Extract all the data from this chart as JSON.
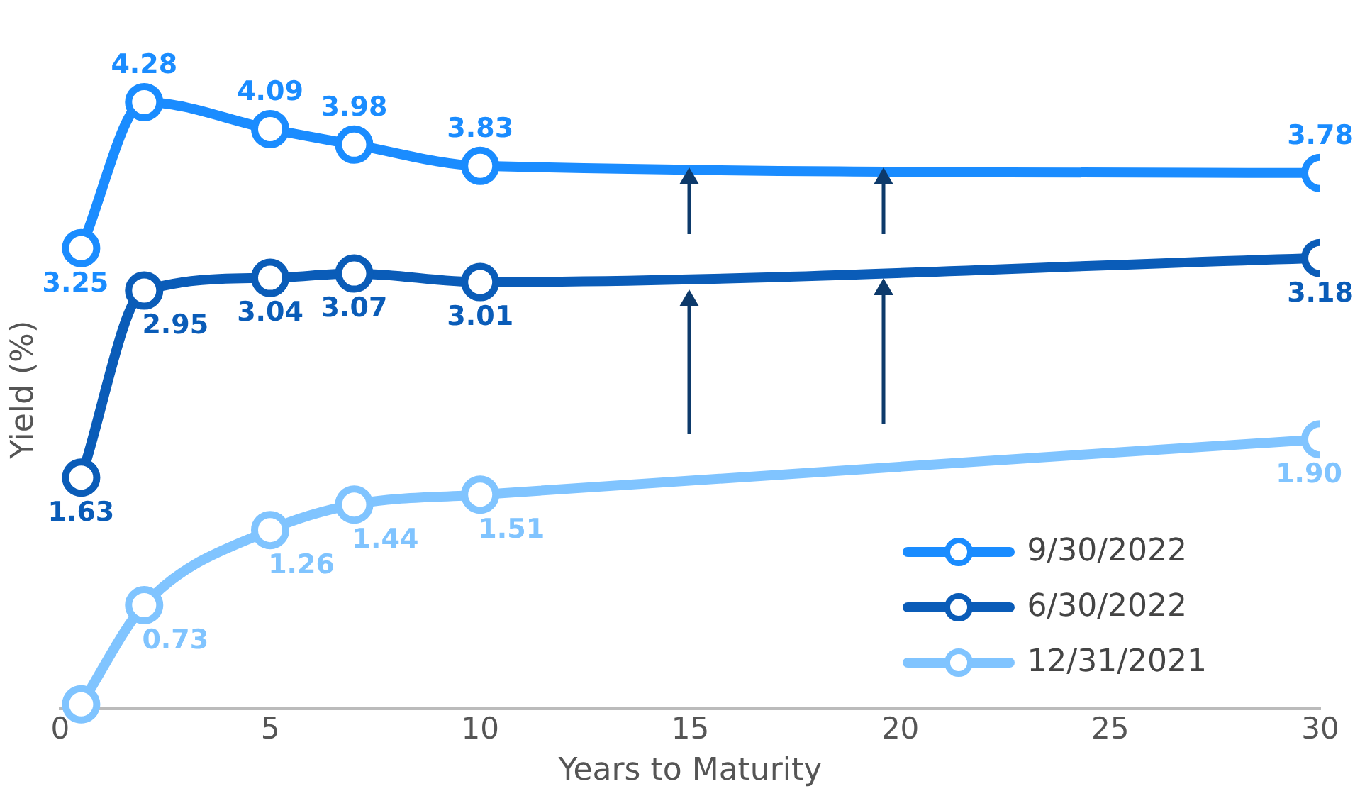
{
  "chart_data": {
    "type": "line",
    "xlabel": "Years to Maturity",
    "ylabel": "Yield (%)",
    "x": [
      0.5,
      2,
      5,
      7,
      10,
      30
    ],
    "series": [
      {
        "name": "9/30/2022",
        "color": "#1a8cff",
        "values": [
          3.25,
          4.28,
          4.09,
          3.98,
          3.83,
          3.78
        ],
        "value_labels": [
          "3.25",
          "4.28",
          "4.09",
          "3.98",
          "3.83",
          "3.78"
        ]
      },
      {
        "name": "6/30/2022",
        "color": "#0a5cb8",
        "values": [
          1.63,
          2.95,
          3.04,
          3.07,
          3.01,
          3.18
        ],
        "value_labels": [
          "1.63",
          "2.95",
          "3.04",
          "3.07",
          "3.01",
          "3.18"
        ]
      },
      {
        "name": "12/31/2021",
        "color": "#80c4ff",
        "values": [
          0.03,
          0.73,
          1.26,
          1.44,
          1.51,
          1.9
        ],
        "value_labels": [
          null,
          "0.73",
          "1.26",
          "1.44",
          "1.51",
          "1.90"
        ]
      }
    ],
    "xlim": [
      0,
      30
    ],
    "xticks": [
      0,
      5,
      10,
      15,
      20,
      25,
      30
    ],
    "tick_labels": "x",
    "grid": false,
    "legend": "bottom right",
    "marker": "circle",
    "line_style": "solid"
  }
}
